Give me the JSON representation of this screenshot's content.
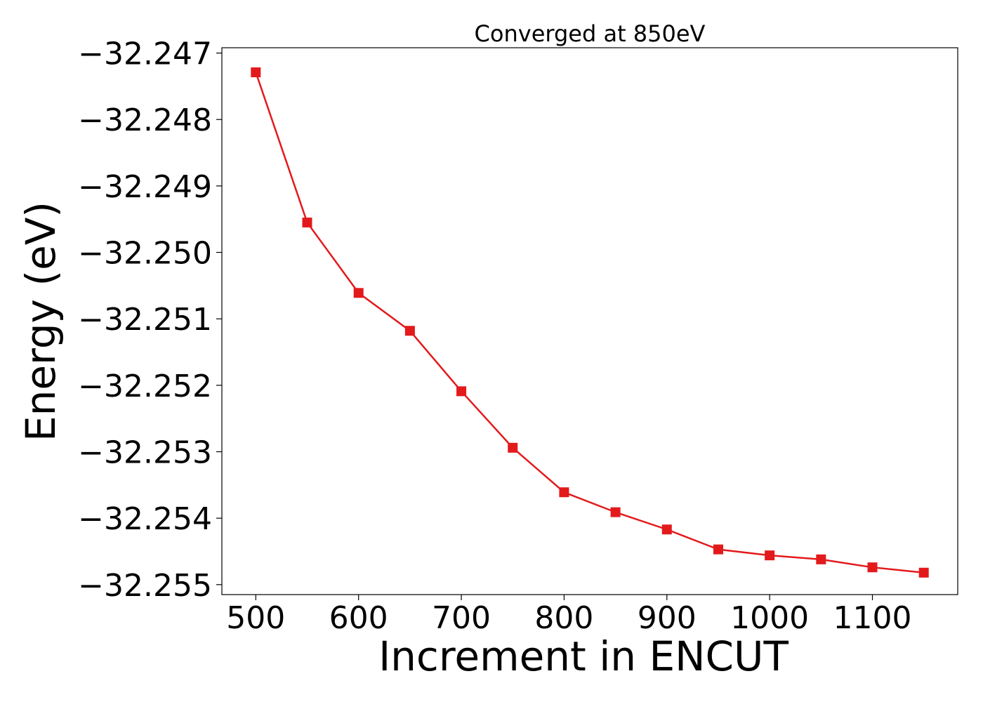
{
  "chart_data": {
    "type": "line",
    "title": "Converged at 850eV",
    "xlabel": "Increment in ENCUT",
    "ylabel": "Energy (eV)",
    "xlim": [
      467,
      1183
    ],
    "ylim": [
      -32.25515,
      -32.24692
    ],
    "xticks": [
      500,
      600,
      700,
      800,
      900,
      1000,
      1100
    ],
    "xtick_labels": [
      "500",
      "600",
      "700",
      "800",
      "900",
      "1000",
      "1100"
    ],
    "yticks": [
      -32.255,
      -32.254,
      -32.253,
      -32.252,
      -32.251,
      -32.25,
      -32.249,
      -32.248,
      -32.247
    ],
    "ytick_labels": [
      "−32.255",
      "−32.254",
      "−32.253",
      "−32.252",
      "−32.251",
      "−32.250",
      "−32.249",
      "−32.248",
      "−32.247"
    ],
    "grid": false,
    "series": [
      {
        "color": "#e31a1c",
        "marker": "square",
        "x": [
          500,
          550,
          600,
          650,
          700,
          750,
          800,
          850,
          900,
          950,
          1000,
          1050,
          1100,
          1150
        ],
        "y": [
          -32.24729,
          -32.24955,
          -32.25061,
          -32.25118,
          -32.25209,
          -32.25294,
          -32.25361,
          -32.25391,
          -32.25417,
          -32.25447,
          -32.25456,
          -32.25462,
          -32.25474,
          -32.25482
        ]
      }
    ]
  }
}
